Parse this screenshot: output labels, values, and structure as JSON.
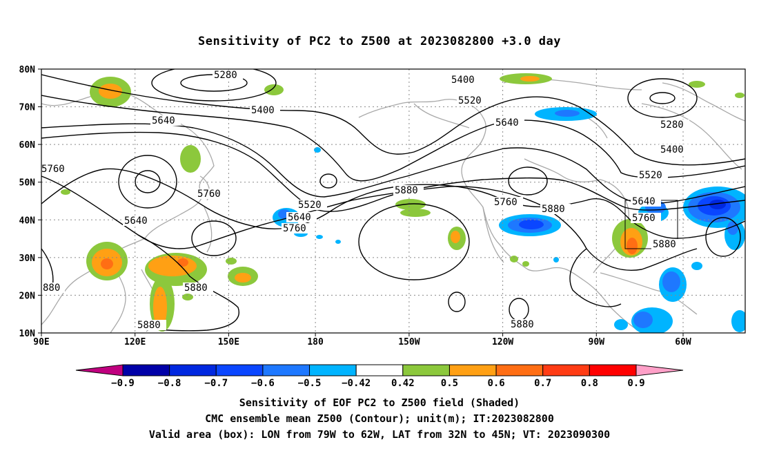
{
  "title": "Sensitivity of PC2 to Z500 at 2023082800 +3.0 day",
  "map": {
    "lon_labels": [
      "90E",
      "120E",
      "150E",
      "180",
      "150W",
      "120W",
      "90W",
      "60W"
    ],
    "lat_labels": [
      "80N",
      "70N",
      "60N",
      "50N",
      "40N",
      "30N",
      "20N",
      "10N"
    ],
    "contour_labels": [
      "5280",
      "5400",
      "5640",
      "5400",
      "5520",
      "5640",
      "5280",
      "5400",
      "5520",
      "5640",
      "5760",
      "5880",
      "5520",
      "5640",
      "5760",
      "5880",
      "5760",
      "5880",
      "5640",
      "5760",
      "5880",
      "5880",
      "5880",
      "5760",
      "880",
      "880"
    ],
    "valid_box": {
      "lon_from": "79W",
      "lon_to": "62W",
      "lat_from": "32N",
      "lat_to": "45N"
    }
  },
  "colorbar": {
    "labels": [
      "−0.9",
      "−0.8",
      "−0.7",
      "−0.6",
      "−0.5",
      "−0.42",
      "0.42",
      "0.5",
      "0.6",
      "0.7",
      "0.8",
      "0.9"
    ],
    "colors": [
      "#c0007f",
      "#0000a8",
      "#0028e0",
      "#0a46ff",
      "#1e78ff",
      "#00b4ff",
      "#ffffff",
      "#8cc83c",
      "#ffa014",
      "#ff6e14",
      "#ff3c14",
      "#ff0000",
      "#ffa0c8"
    ]
  },
  "captions": [
    "Sensitivity of EOF PC2 to Z500 field (Shaded)",
    "CMC ensemble mean Z500 (Contour); unit(m); IT:2023082800",
    "Valid area (box): LON from 79W to 62W, LAT from 32N to 45N; VT: 2023090300"
  ]
}
